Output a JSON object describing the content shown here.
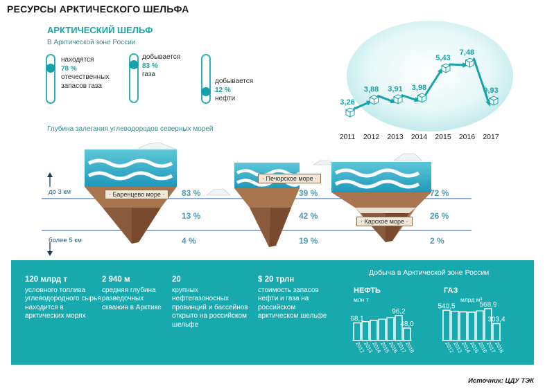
{
  "page_title": "РЕСУРСЫ АРКТИЧЕСКОГО ШЕЛЬФА",
  "shelf": {
    "title": "АРКТИЧЕСКИЙ ШЕЛЬФ",
    "subtitle": "В Арктической зоне России",
    "stats": [
      {
        "label_pre": "находятся",
        "value": "78 %",
        "label_post": "отечественных запасов газа",
        "fraction": 0.78
      },
      {
        "label_pre": "добывается",
        "value": "83 %",
        "label_post": "газа",
        "fraction": 0.83
      },
      {
        "label_pre": "добывается",
        "value": "12 %",
        "label_post": "нефти",
        "fraction": 0.12
      }
    ]
  },
  "trend": {
    "years": [
      "2011",
      "2012",
      "2013",
      "2014",
      "2015",
      "2016",
      "2017"
    ],
    "values": [
      "3,26",
      "3,88",
      "3,91",
      "3,98",
      "5,43",
      "7,48",
      "9,93"
    ]
  },
  "depth": {
    "title": "Глубина залегания углеводородов северных морей",
    "upper_label": "до 3 км",
    "lower_label": "более 5 км",
    "seas": [
      {
        "name": "· Баренцево море ·",
        "pcts": [
          "83 %",
          "13 %",
          "4 %"
        ]
      },
      {
        "name": "· Печорское море ·",
        "pcts": [
          "39 %",
          "42 %",
          "19 %"
        ]
      },
      {
        "name": "· Карское море ·",
        "pcts": [
          "72 %",
          "26 %",
          "2 %"
        ]
      }
    ]
  },
  "facts": [
    {
      "value": "120 млрд т",
      "text": "условного топлива углеводородного сырья находится в арктических морях"
    },
    {
      "value": "2 940 м",
      "text": "средняя глубина разведочных скважин в Арктике"
    },
    {
      "value": "20",
      "text": "крупных нефтегазоносных провинций и бассейнов открыто на российском шельфе"
    },
    {
      "value": "$ 20 трлн",
      "text": "стоимость запасов нефти и газа на российском арктическом шельфе"
    }
  ],
  "production": {
    "title": "Добыча в Арктической зоне России",
    "oil": {
      "name": "НЕФТЬ",
      "unit": "млн т"
    },
    "gas": {
      "name": "ГАЗ",
      "unit": "млрд м³"
    }
  },
  "chart_data": [
    {
      "type": "bar",
      "categories": [
        "2012",
        "2013",
        "2014",
        "2015",
        "2016",
        "2017",
        "2018"
      ],
      "series": [
        {
          "name": "НЕФТЬ",
          "values": [
            68.1,
            73,
            78,
            82,
            88,
            96.2,
            48.0
          ]
        }
      ],
      "labels": {
        "0": "68,1",
        "5": "96,2",
        "6": "48,0"
      },
      "ylabel": "млн т"
    },
    {
      "type": "bar",
      "categories": [
        "2012",
        "2013",
        "2014",
        "2015",
        "2016",
        "2017",
        "2018"
      ],
      "series": [
        {
          "name": "ГАЗ",
          "values": [
            540.5,
            522,
            512,
            506,
            528,
            568.9,
            303.4
          ]
        }
      ],
      "labels": {
        "0": "540,5",
        "5": "568,9",
        "6": "303,4"
      },
      "ylabel": "млрд м³"
    }
  ],
  "source": "Источник: ЦДУ ТЭК",
  "colors": {
    "accent": "#17a9ae",
    "water": "#2aa9c9",
    "soil": "#8a5a3c",
    "line": "#4a7fc1"
  }
}
